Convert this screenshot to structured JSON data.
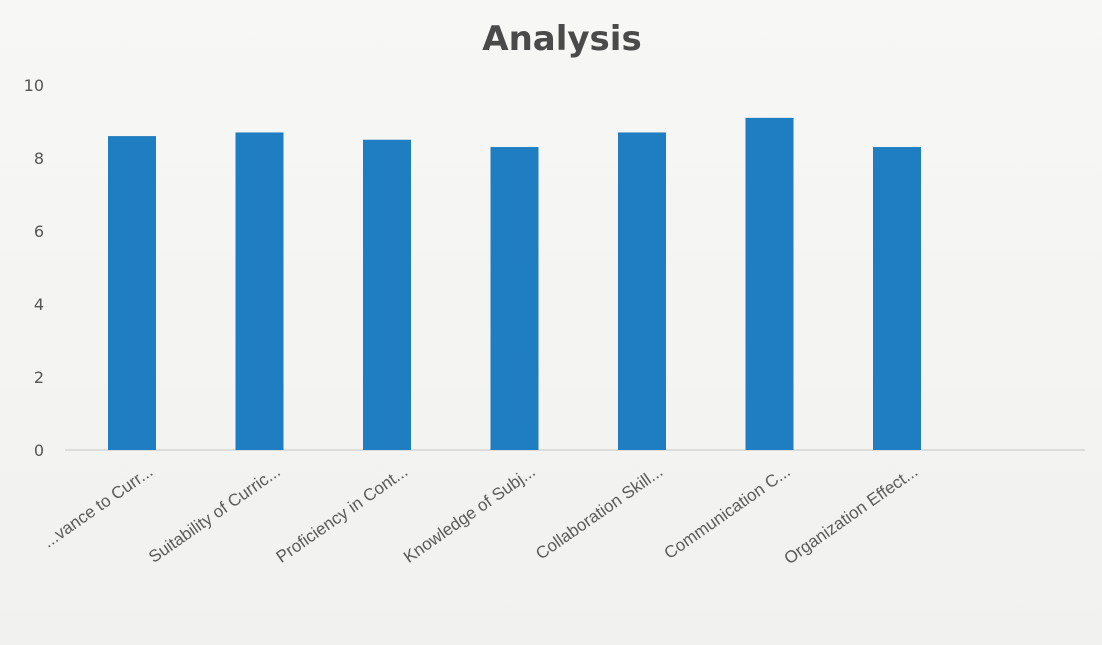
{
  "chart_data": {
    "type": "bar",
    "title": "Analysis",
    "xlabel": "",
    "ylabel": "",
    "categories": [
      "...vance to Curr...",
      "Suitability of Curric...",
      "Proficiency in Cont...",
      "Knowledge of Subj...",
      "Collaboration Skill...",
      "Communication C...",
      "Organization Effect..."
    ],
    "values": [
      8.6,
      8.7,
      8.5,
      8.3,
      8.7,
      9.1,
      8.3
    ],
    "ylim": [
      0,
      10
    ],
    "yticks": [
      "0",
      "2",
      "4",
      "6",
      "8",
      "10"
    ],
    "grid": false,
    "bar_color": "#1f7ec2",
    "legend": "none"
  }
}
